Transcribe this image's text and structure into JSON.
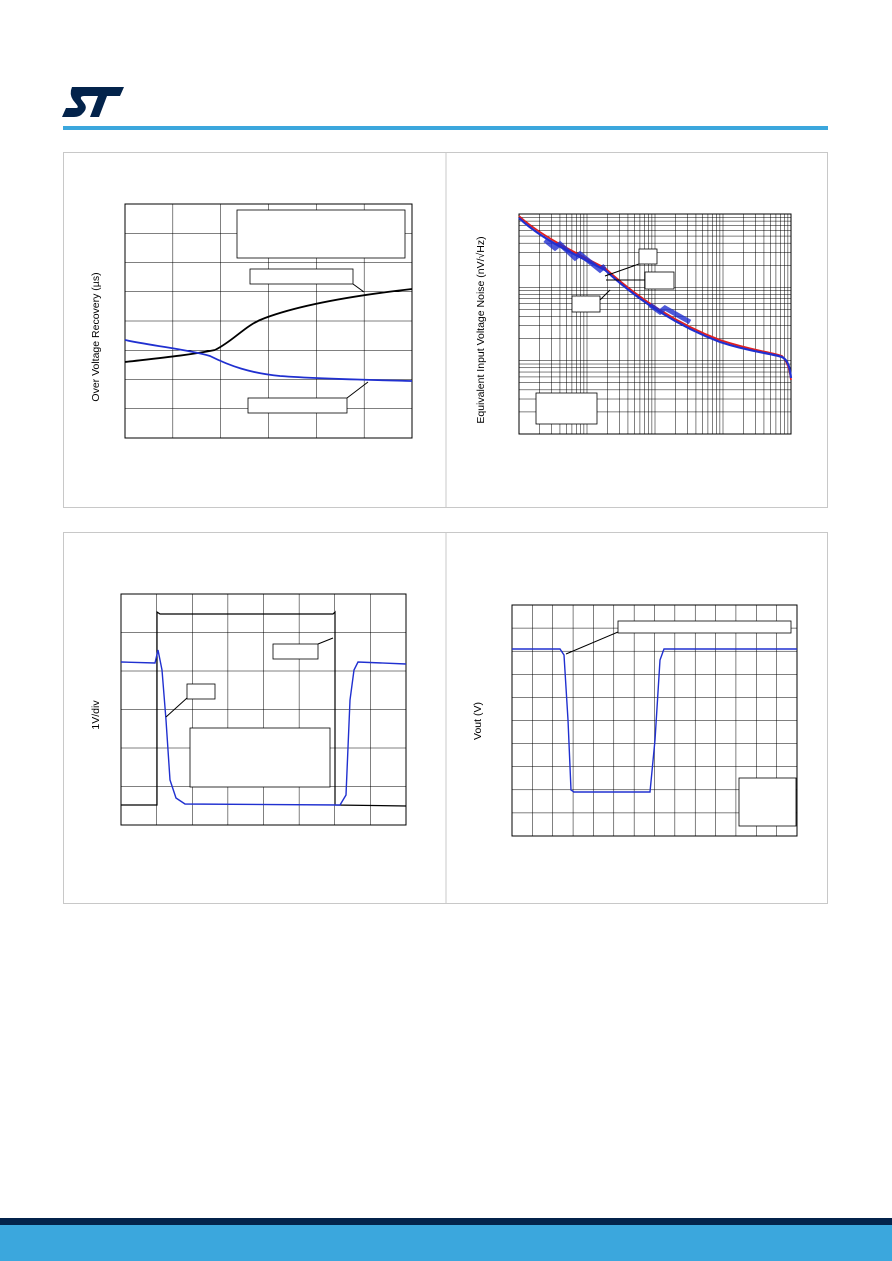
{
  "charts": [
    {
      "y_label": "Over Voltage Recovery (µs)"
    },
    {
      "y_label": "Equivalent Input Voltage Noise (nV/√Hz)"
    },
    {
      "y_label": "1V/div"
    },
    {
      "y_label": "Vout (V)"
    }
  ]
}
